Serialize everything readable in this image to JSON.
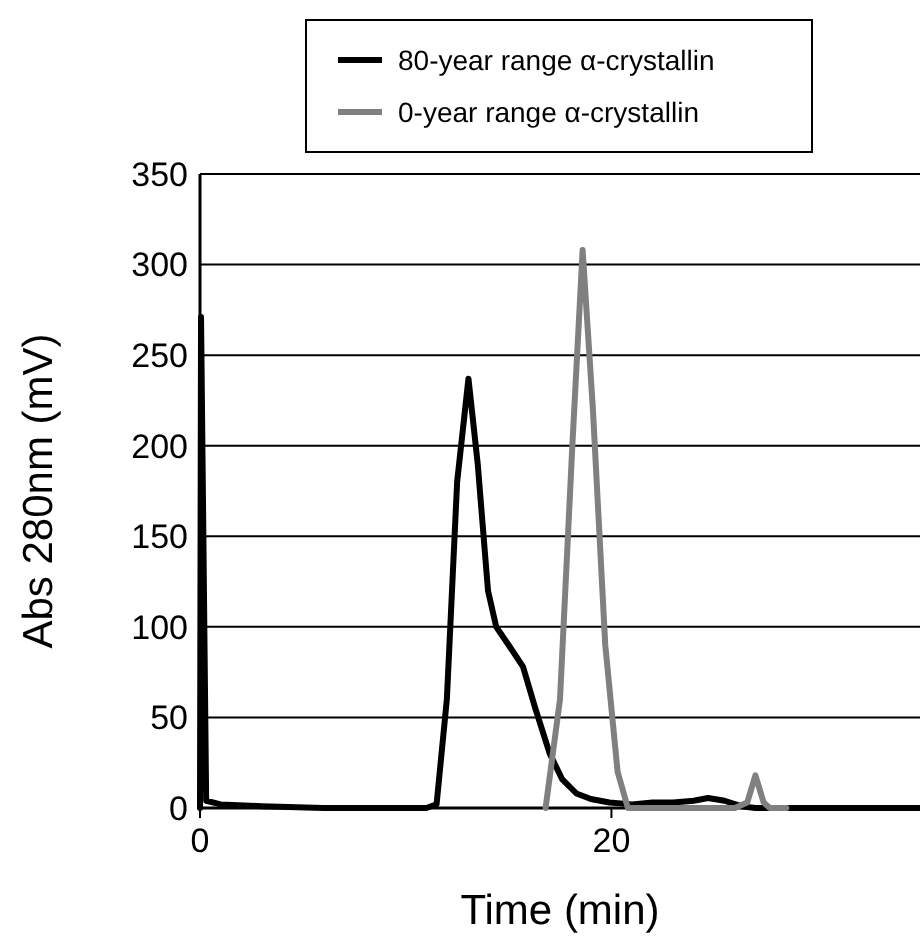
{
  "chart_data": {
    "type": "line",
    "xlabel": "Time (min)",
    "ylabel": "Abs 280nm (mV)",
    "xlim": [
      0,
      35
    ],
    "xticks": [
      0,
      20
    ],
    "ylim": [
      0,
      350
    ],
    "yticks": [
      0,
      50,
      100,
      150,
      200,
      250,
      300,
      350
    ],
    "grid": "y",
    "legend": "top",
    "line_style": "solid",
    "marker": "none",
    "series": [
      {
        "name": "80-year range α-crystallin",
        "color": "#000000",
        "x": [
          0,
          0.05,
          0.3,
          1,
          3,
          6,
          9,
          11,
          11.5,
          12,
          12.5,
          13.05,
          13.5,
          14,
          14.4,
          15,
          15.7,
          16.3,
          17,
          17.6,
          18.3,
          19,
          19.9,
          21,
          22,
          23,
          24,
          24.7,
          25.5,
          26.3,
          27,
          28,
          30,
          35
        ],
        "values": [
          0,
          271,
          4,
          2,
          1,
          0,
          0,
          0,
          2,
          60,
          180,
          237,
          190,
          120,
          100,
          90,
          78,
          55,
          30,
          16,
          8,
          5,
          3,
          2,
          3,
          3,
          4,
          5.5,
          4,
          1,
          0,
          0,
          0,
          0
        ]
      },
      {
        "name": "0-year range α-crystallin",
        "color": "#808080",
        "x": [
          16.8,
          17.5,
          18.1,
          18.6,
          19.1,
          19.7,
          20.3,
          20.8,
          21.5,
          23,
          25,
          26,
          26.6,
          27,
          27.4,
          27.7,
          28.5
        ],
        "values": [
          0,
          60,
          200,
          308,
          220,
          90,
          20,
          0,
          0,
          0,
          0,
          0,
          3,
          18,
          3,
          0,
          0
        ]
      }
    ]
  }
}
